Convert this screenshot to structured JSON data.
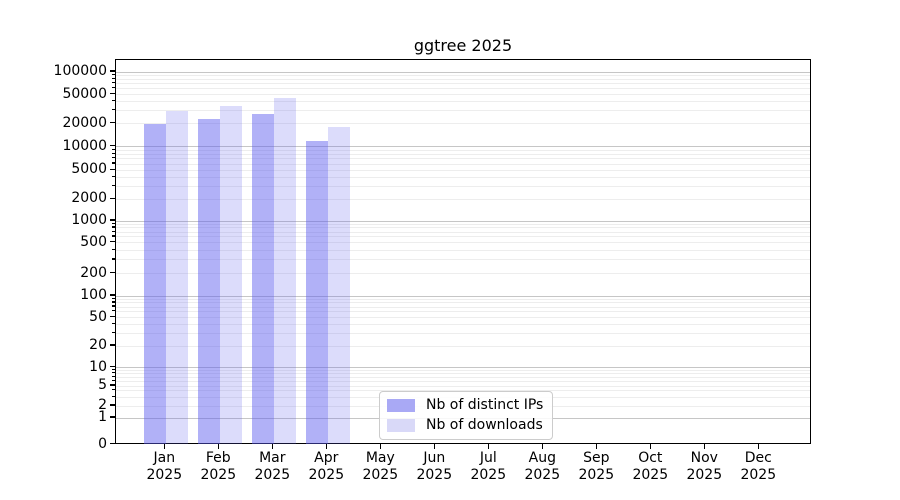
{
  "title": "ggtree 2025",
  "chart_data": {
    "type": "bar",
    "title": "ggtree 2025",
    "categories": [
      "Jan",
      "Feb",
      "Mar",
      "Apr",
      "May",
      "Jun",
      "Jul",
      "Aug",
      "Sep",
      "Oct",
      "Nov",
      "Dec"
    ],
    "year_label": "2025",
    "series": [
      {
        "name": "Nb of distinct IPs",
        "fill": "#5a5aee",
        "fill_alpha": 0.47,
        "apparent_color": "#a9a9f5",
        "values": [
          19300,
          22500,
          26500,
          11500,
          0,
          0,
          0,
          0,
          0,
          0,
          0,
          0
        ]
      },
      {
        "name": "Nb of downloads",
        "fill": "#5a5aee",
        "fill_alpha": 0.21,
        "apparent_color": "#d9d9f8",
        "values": [
          29300,
          34600,
          43900,
          17900,
          0,
          0,
          0,
          0,
          0,
          0,
          0,
          0
        ]
      }
    ],
    "xlabel": "",
    "ylabel": "",
    "yscale": "symlog",
    "ylim": [
      0,
      145000
    ],
    "yticks": [
      0,
      1,
      2,
      5,
      10,
      20,
      50,
      100,
      200,
      500,
      1000,
      2000,
      5000,
      10000,
      20000,
      50000,
      100000
    ],
    "grid": {
      "axis": "y",
      "which": "both",
      "major_color": "#c6c6c6",
      "minor_color": "#ededed"
    },
    "legend": {
      "position": "lower-center",
      "items": [
        "Nb of distinct IPs",
        "Nb of downloads"
      ]
    }
  },
  "axes": {
    "spine_color": "#000000",
    "tick_color": "#000000",
    "label_color": "#000000"
  }
}
